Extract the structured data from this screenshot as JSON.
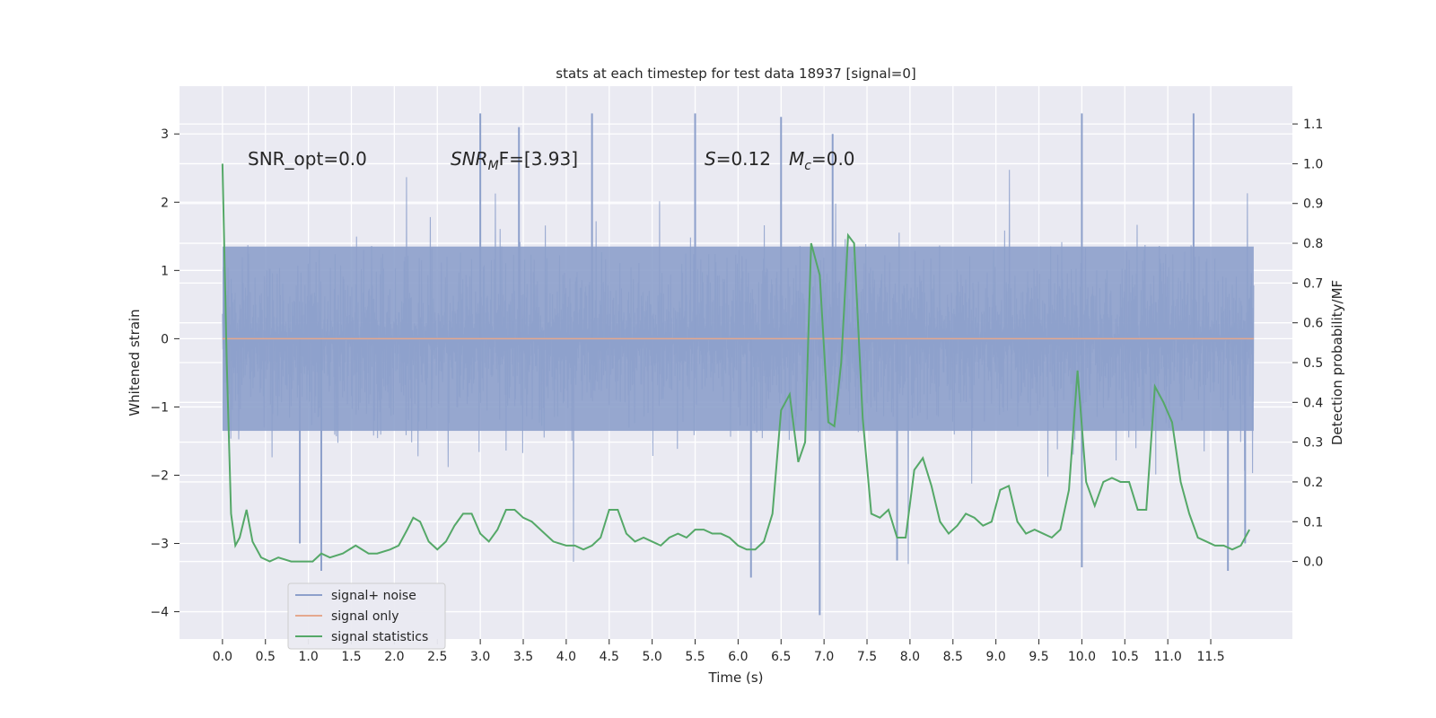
{
  "chart_data": {
    "type": "line",
    "title": "stats at each timestep for test data 18937 [signal=0]",
    "xlabel": "Time (s)",
    "ylabel_left": "Whitened strain",
    "ylabel_right": "Detection probability/MF",
    "xlim": [
      -0.5,
      12.45
    ],
    "ylim_left": [
      -4.4,
      3.7
    ],
    "ylim_right": [
      -0.195,
      1.195
    ],
    "x_ticks": [
      0.0,
      0.5,
      1.0,
      1.5,
      2.0,
      2.5,
      3.0,
      3.5,
      4.0,
      4.5,
      5.0,
      5.5,
      6.0,
      6.5,
      7.0,
      7.5,
      8.0,
      8.5,
      9.0,
      9.5,
      10.0,
      10.5,
      11.0,
      11.5
    ],
    "x_tick_labels": [
      "0.0",
      "0.5",
      "1.0",
      "1.5",
      "2.0",
      "2.5",
      "3.0",
      "3.5",
      "4.0",
      "4.5",
      "5.0",
      "5.5",
      "6.0",
      "6.5",
      "7.0",
      "7.5",
      "8.0",
      "8.5",
      "9.0",
      "9.5",
      "10.0",
      "10.5",
      "11.0",
      "11.5"
    ],
    "y_ticks_left": [
      3,
      2,
      1,
      0,
      -1,
      -2,
      -3,
      -4
    ],
    "y_tick_labels_left": [
      "3",
      "2",
      "1",
      "0",
      "−1",
      "−2",
      "−3",
      "−4"
    ],
    "y_ticks_right": [
      1.1,
      1.0,
      0.9,
      0.8,
      0.7,
      0.6,
      0.5,
      0.4,
      0.3,
      0.2,
      0.1,
      0.0
    ],
    "y_tick_labels_right": [
      "1.1",
      "1.0",
      "0.9",
      "0.8",
      "0.7",
      "0.6",
      "0.5",
      "0.4",
      "0.3",
      "0.2",
      "0.1",
      "0.0"
    ],
    "grid": true,
    "legend_position": "lower-left",
    "annotations": {
      "snr_opt": "SNR_opt=0.0",
      "snr_mf_main": "SNR",
      "snr_mf_sub": "M",
      "snr_mf_rest": "F=[3.93]",
      "s_main": "S",
      "s_rest": "=0.12",
      "mc_main": "M",
      "mc_sub": "c",
      "mc_rest": "=0.0"
    },
    "series": [
      {
        "name": "signal+ noise",
        "color": "#8da0cb",
        "axis": "left",
        "x_range": [
          0.0,
          12.0
        ],
        "amplitude_core": 1.35,
        "peaks": [
          {
            "x": 3.0,
            "y": 3.3
          },
          {
            "x": 3.45,
            "y": 3.1
          },
          {
            "x": 4.3,
            "y": 3.3
          },
          {
            "x": 5.5,
            "y": 3.3
          },
          {
            "x": 6.5,
            "y": 3.25
          },
          {
            "x": 7.1,
            "y": 3.0
          },
          {
            "x": 10.0,
            "y": 3.3
          },
          {
            "x": 11.3,
            "y": 3.3
          },
          {
            "x": 0.9,
            "y": -3.0
          },
          {
            "x": 1.15,
            "y": -3.4
          },
          {
            "x": 6.15,
            "y": -3.5
          },
          {
            "x": 6.95,
            "y": -4.05
          },
          {
            "x": 7.85,
            "y": -3.25
          },
          {
            "x": 10.0,
            "y": -3.35
          },
          {
            "x": 11.7,
            "y": -3.4
          },
          {
            "x": 11.9,
            "y": -3.0
          }
        ]
      },
      {
        "name": "signal only",
        "color": "#e5a88e",
        "axis": "left",
        "x": [
          0.0,
          12.0
        ],
        "y": [
          0.0,
          0.0
        ]
      },
      {
        "name": "signal statistics",
        "color": "#55a868",
        "axis": "right",
        "x": [
          0.0,
          0.05,
          0.1,
          0.15,
          0.2,
          0.28,
          0.35,
          0.45,
          0.55,
          0.65,
          0.8,
          0.95,
          1.05,
          1.15,
          1.25,
          1.4,
          1.55,
          1.7,
          1.8,
          1.95,
          2.05,
          2.15,
          2.22,
          2.3,
          2.4,
          2.5,
          2.6,
          2.7,
          2.8,
          2.9,
          3.0,
          3.1,
          3.2,
          3.3,
          3.4,
          3.5,
          3.6,
          3.7,
          3.85,
          4.0,
          4.1,
          4.2,
          4.3,
          4.4,
          4.5,
          4.6,
          4.7,
          4.8,
          4.9,
          5.0,
          5.1,
          5.2,
          5.3,
          5.4,
          5.5,
          5.6,
          5.7,
          5.8,
          5.9,
          6.0,
          6.1,
          6.2,
          6.3,
          6.4,
          6.5,
          6.6,
          6.7,
          6.78,
          6.85,
          6.95,
          7.05,
          7.12,
          7.2,
          7.28,
          7.35,
          7.45,
          7.55,
          7.65,
          7.75,
          7.85,
          7.95,
          8.05,
          8.15,
          8.25,
          8.35,
          8.45,
          8.55,
          8.65,
          8.75,
          8.85,
          8.95,
          9.05,
          9.15,
          9.25,
          9.35,
          9.45,
          9.55,
          9.65,
          9.75,
          9.85,
          9.95,
          10.05,
          10.15,
          10.25,
          10.35,
          10.45,
          10.55,
          10.65,
          10.75,
          10.85,
          10.95,
          11.05,
          11.15,
          11.25,
          11.35,
          11.45,
          11.55,
          11.65,
          11.75,
          11.85,
          11.95
        ],
        "y": [
          1.0,
          0.5,
          0.12,
          0.04,
          0.06,
          0.13,
          0.05,
          0.01,
          0.0,
          0.01,
          0.0,
          0.0,
          0.0,
          0.02,
          0.01,
          0.02,
          0.04,
          0.02,
          0.02,
          0.03,
          0.04,
          0.08,
          0.11,
          0.1,
          0.05,
          0.03,
          0.05,
          0.09,
          0.12,
          0.12,
          0.07,
          0.05,
          0.08,
          0.13,
          0.13,
          0.11,
          0.1,
          0.08,
          0.05,
          0.04,
          0.04,
          0.03,
          0.04,
          0.06,
          0.13,
          0.13,
          0.07,
          0.05,
          0.06,
          0.05,
          0.04,
          0.06,
          0.07,
          0.06,
          0.08,
          0.08,
          0.07,
          0.07,
          0.06,
          0.04,
          0.03,
          0.03,
          0.05,
          0.12,
          0.38,
          0.42,
          0.25,
          0.3,
          0.8,
          0.72,
          0.35,
          0.34,
          0.5,
          0.82,
          0.8,
          0.36,
          0.12,
          0.11,
          0.13,
          0.06,
          0.06,
          0.23,
          0.26,
          0.19,
          0.1,
          0.07,
          0.09,
          0.12,
          0.11,
          0.09,
          0.1,
          0.18,
          0.19,
          0.1,
          0.07,
          0.08,
          0.07,
          0.06,
          0.08,
          0.18,
          0.48,
          0.2,
          0.14,
          0.2,
          0.21,
          0.2,
          0.2,
          0.13,
          0.13,
          0.44,
          0.4,
          0.35,
          0.2,
          0.12,
          0.06,
          0.05,
          0.04,
          0.04,
          0.03,
          0.04,
          0.08
        ]
      }
    ]
  }
}
